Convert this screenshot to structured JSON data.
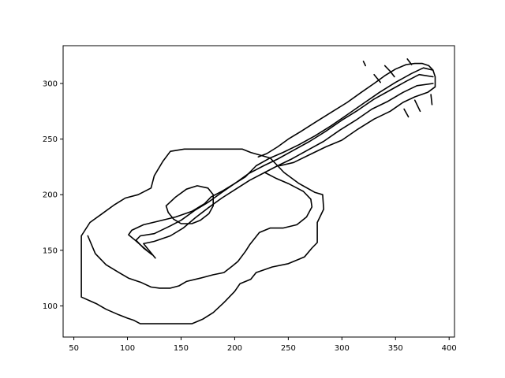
{
  "chart_data": {
    "type": "line",
    "title": "",
    "xlabel": "",
    "ylabel": "",
    "xlim": [
      40,
      405
    ],
    "ylim": [
      72,
      334
    ],
    "xticks": [
      50,
      100,
      150,
      200,
      250,
      300,
      350,
      400
    ],
    "yticks": [
      100,
      150,
      200,
      250,
      300
    ],
    "xtick_labels": [
      "50",
      "100",
      "150",
      "200",
      "250",
      "300",
      "350",
      "400"
    ],
    "ytick_labels": [
      "100",
      "150",
      "200",
      "250",
      "300"
    ],
    "grid": false,
    "series": [
      {
        "values": [
          [
            57,
            163
          ],
          [
            57,
            108
          ],
          [
            71,
            102
          ],
          [
            80,
            97
          ],
          [
            92,
            92
          ],
          [
            100,
            89
          ],
          [
            106,
            87
          ],
          [
            112,
            84
          ],
          [
            120,
            84
          ],
          [
            128,
            84
          ],
          [
            140,
            84
          ],
          [
            150,
            84
          ],
          [
            160,
            84
          ],
          [
            170,
            88
          ],
          [
            180,
            94
          ],
          [
            190,
            103
          ],
          [
            200,
            113
          ],
          [
            205,
            120
          ],
          [
            215,
            124
          ],
          [
            220,
            130
          ],
          [
            235,
            135
          ],
          [
            250,
            138
          ],
          [
            265,
            144
          ],
          [
            272,
            152
          ],
          [
            277,
            157
          ],
          [
            277,
            175
          ],
          [
            283,
            187
          ],
          [
            282,
            200
          ],
          [
            275,
            202
          ],
          [
            260,
            210
          ],
          [
            246,
            220
          ],
          [
            240,
            226
          ],
          [
            233,
            233
          ],
          [
            215,
            238
          ],
          [
            207,
            241
          ],
          [
            190,
            241
          ],
          [
            166,
            241
          ],
          [
            153,
            241
          ],
          [
            140,
            239
          ],
          [
            133,
            230
          ],
          [
            125,
            217
          ],
          [
            122,
            206
          ],
          [
            110,
            200
          ],
          [
            98,
            197
          ],
          [
            88,
            191
          ],
          [
            75,
            182
          ],
          [
            65,
            175
          ],
          [
            57,
            163
          ]
        ]
      },
      {
        "values": [
          [
            63,
            163
          ],
          [
            70,
            147
          ],
          [
            80,
            137
          ],
          [
            92,
            130
          ],
          [
            101,
            125
          ],
          [
            113,
            121
          ],
          [
            122,
            117
          ],
          [
            130,
            116
          ],
          [
            140,
            116
          ],
          [
            148,
            118
          ],
          [
            155,
            122
          ],
          [
            168,
            125
          ],
          [
            180,
            128
          ],
          [
            190,
            130
          ],
          [
            198,
            136
          ],
          [
            203,
            140
          ],
          [
            210,
            149
          ],
          [
            214,
            155
          ],
          [
            223,
            166
          ],
          [
            233,
            170
          ],
          [
            245,
            170
          ],
          [
            258,
            173
          ],
          [
            267,
            180
          ],
          [
            272,
            189
          ],
          [
            271,
            196
          ],
          [
            264,
            203
          ],
          [
            250,
            210
          ],
          [
            238,
            215
          ],
          [
            228,
            220
          ]
        ]
      },
      {
        "values": [
          [
            118,
            150
          ],
          [
            112,
            155
          ],
          [
            106,
            160
          ],
          [
            101,
            164
          ],
          [
            104,
            168
          ],
          [
            115,
            173
          ],
          [
            128,
            176
          ],
          [
            145,
            180
          ],
          [
            160,
            185
          ],
          [
            172,
            192
          ],
          [
            178,
            198
          ],
          [
            188,
            203
          ],
          [
            200,
            210
          ],
          [
            210,
            216
          ],
          [
            220,
            226
          ],
          [
            233,
            233
          ],
          [
            245,
            238
          ],
          [
            260,
            245
          ],
          [
            275,
            253
          ],
          [
            290,
            262
          ],
          [
            305,
            272
          ],
          [
            320,
            282
          ],
          [
            335,
            292
          ],
          [
            350,
            301
          ],
          [
            365,
            309
          ],
          [
            376,
            314
          ],
          [
            385,
            312
          ]
        ]
      },
      {
        "values": [
          [
            123,
            146
          ],
          [
            115,
            152
          ],
          [
            108,
            159
          ],
          [
            112,
            163
          ],
          [
            125,
            165
          ],
          [
            140,
            172
          ],
          [
            150,
            177
          ],
          [
            163,
            186
          ],
          [
            175,
            193
          ],
          [
            188,
            202
          ],
          [
            200,
            210
          ],
          [
            213,
            219
          ],
          [
            227,
            226
          ],
          [
            240,
            232
          ],
          [
            255,
            240
          ],
          [
            270,
            248
          ],
          [
            285,
            257
          ],
          [
            300,
            267
          ],
          [
            315,
            276
          ],
          [
            330,
            286
          ],
          [
            345,
            294
          ],
          [
            360,
            302
          ],
          [
            372,
            308
          ],
          [
            385,
            306
          ]
        ]
      },
      {
        "values": [
          [
            126,
            143
          ],
          [
            120,
            150
          ],
          [
            115,
            156
          ],
          [
            125,
            158
          ],
          [
            140,
            163
          ],
          [
            152,
            170
          ],
          [
            163,
            179
          ],
          [
            175,
            188
          ],
          [
            188,
            197
          ],
          [
            201,
            205
          ],
          [
            214,
            213
          ],
          [
            228,
            220
          ],
          [
            240,
            226
          ],
          [
            253,
            232
          ],
          [
            268,
            240
          ],
          [
            283,
            248
          ],
          [
            298,
            258
          ],
          [
            313,
            267
          ],
          [
            328,
            277
          ],
          [
            343,
            284
          ],
          [
            357,
            292
          ],
          [
            370,
            298
          ],
          [
            385,
            300
          ]
        ]
      },
      {
        "values": [
          [
            242,
            226
          ],
          [
            255,
            229
          ],
          [
            270,
            236
          ],
          [
            285,
            243
          ],
          [
            300,
            249
          ],
          [
            315,
            259
          ],
          [
            330,
            268
          ],
          [
            345,
            275
          ],
          [
            357,
            283
          ],
          [
            368,
            288
          ],
          [
            380,
            292
          ],
          [
            387,
            297
          ],
          [
            387,
            306
          ],
          [
            385,
            312
          ],
          [
            381,
            316
          ],
          [
            375,
            318
          ],
          [
            368,
            318
          ],
          [
            360,
            317
          ],
          [
            350,
            313
          ],
          [
            340,
            307
          ],
          [
            330,
            300
          ],
          [
            318,
            292
          ],
          [
            305,
            283
          ],
          [
            290,
            274
          ],
          [
            275,
            265
          ],
          [
            262,
            257
          ],
          [
            250,
            250
          ],
          [
            240,
            243
          ],
          [
            230,
            237
          ],
          [
            222,
            234
          ]
        ]
      },
      {
        "values": [
          [
            136,
            190
          ],
          [
            145,
            198
          ],
          [
            155,
            205
          ],
          [
            165,
            208
          ],
          [
            175,
            206
          ],
          [
            180,
            200
          ],
          [
            180,
            190
          ],
          [
            176,
            183
          ],
          [
            168,
            177
          ],
          [
            160,
            174
          ],
          [
            150,
            174
          ],
          [
            143,
            178
          ],
          [
            138,
            184
          ],
          [
            136,
            190
          ]
        ]
      },
      {
        "values": [
          [
            340,
            316
          ],
          [
            345,
            311
          ],
          [
            349,
            306
          ]
        ]
      },
      {
        "values": [
          [
            330,
            308
          ],
          [
            336,
            301
          ]
        ]
      },
      {
        "values": [
          [
            361,
            322
          ],
          [
            365,
            317
          ]
        ]
      },
      {
        "values": [
          [
            358,
            277
          ],
          [
            362,
            270
          ]
        ]
      },
      {
        "values": [
          [
            368,
            285
          ],
          [
            373,
            275
          ]
        ]
      },
      {
        "values": [
          [
            383,
            290
          ],
          [
            384,
            281
          ]
        ]
      },
      {
        "values": [
          [
            320,
            320
          ],
          [
            322,
            316
          ]
        ]
      }
    ]
  }
}
